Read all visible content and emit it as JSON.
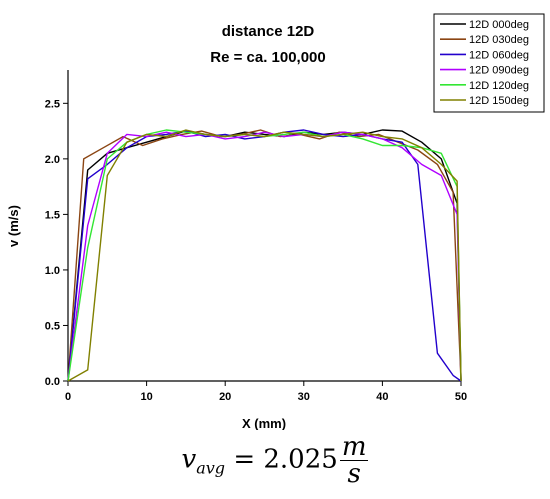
{
  "chart_data": {
    "type": "line",
    "title": [
      "distance 12D",
      "Re = ca. 100,000"
    ],
    "xlabel": "X (mm)",
    "ylabel": "v (m/s)",
    "xlim": [
      0,
      50
    ],
    "ylim": [
      0,
      2.8
    ],
    "xticks": [
      "0",
      "10",
      "20",
      "30",
      "40",
      "50"
    ],
    "yticks": [
      "0.0",
      "0.5",
      "1.0",
      "1.5",
      "2.0",
      "2.5"
    ],
    "grid": false,
    "legend_position": "top-right",
    "series": [
      {
        "name": "12D 000deg",
        "color": "#000000",
        "x": [
          0,
          2.5,
          5,
          7.5,
          10,
          12.5,
          15,
          17.5,
          20,
          22.5,
          25,
          27.5,
          30,
          32.5,
          35,
          37.5,
          40,
          42.5,
          45,
          47.5,
          49.5,
          50
        ],
        "y": [
          0,
          1.9,
          2.05,
          2.1,
          2.15,
          2.2,
          2.25,
          2.22,
          2.2,
          2.24,
          2.22,
          2.2,
          2.24,
          2.22,
          2.24,
          2.22,
          2.26,
          2.25,
          2.15,
          2.0,
          1.6,
          0
        ]
      },
      {
        "name": "12D 030deg",
        "color": "#8B4513",
        "x": [
          0,
          2,
          4.5,
          7,
          9.5,
          12,
          14.5,
          17,
          19.5,
          22,
          24.5,
          27,
          29.5,
          32,
          34.5,
          37,
          39.5,
          42,
          44.5,
          47,
          49,
          50
        ],
        "y": [
          0,
          2.0,
          2.1,
          2.2,
          2.12,
          2.18,
          2.22,
          2.25,
          2.2,
          2.22,
          2.26,
          2.2,
          2.22,
          2.18,
          2.24,
          2.2,
          2.22,
          2.15,
          2.08,
          1.95,
          1.7,
          0
        ]
      },
      {
        "name": "12D 060deg",
        "color": "#2200CC",
        "x": [
          0,
          2.5,
          5,
          7.5,
          10,
          12.5,
          15,
          17.5,
          20,
          22.5,
          25,
          27.5,
          30,
          32.5,
          35,
          37.5,
          40,
          42.5,
          44.5,
          47,
          49,
          50
        ],
        "y": [
          0,
          1.82,
          1.95,
          2.1,
          2.2,
          2.22,
          2.25,
          2.2,
          2.22,
          2.18,
          2.2,
          2.24,
          2.26,
          2.22,
          2.2,
          2.22,
          2.18,
          2.15,
          1.95,
          0.25,
          0.05,
          0
        ]
      },
      {
        "name": "12D 090deg",
        "color": "#B000FF",
        "x": [
          0,
          2.5,
          5,
          7.5,
          10,
          12.5,
          15,
          17.5,
          20,
          22.5,
          25,
          27.5,
          30,
          32.5,
          35,
          37.5,
          40,
          42.5,
          45,
          47.5,
          49.5,
          50
        ],
        "y": [
          0,
          1.4,
          2.05,
          2.22,
          2.2,
          2.24,
          2.2,
          2.22,
          2.18,
          2.2,
          2.24,
          2.2,
          2.22,
          2.2,
          2.24,
          2.22,
          2.18,
          2.1,
          1.95,
          1.85,
          1.5,
          0
        ]
      },
      {
        "name": "12D 120deg",
        "color": "#33E633",
        "x": [
          0,
          2.5,
          5,
          7.5,
          10,
          12.5,
          15,
          17.5,
          20,
          22.5,
          25,
          27.5,
          30,
          32.5,
          35,
          37.5,
          40,
          42.5,
          45,
          47.5,
          49.5,
          50
        ],
        "y": [
          0,
          1.2,
          2.0,
          2.15,
          2.22,
          2.26,
          2.24,
          2.22,
          2.2,
          2.22,
          2.2,
          2.22,
          2.24,
          2.2,
          2.22,
          2.18,
          2.12,
          2.12,
          2.1,
          2.05,
          1.75,
          0
        ]
      },
      {
        "name": "12D 150deg",
        "color": "#808000",
        "x": [
          0,
          2.5,
          5,
          7.5,
          10,
          12.5,
          15,
          17.5,
          20,
          22.5,
          25,
          27.5,
          30,
          32.5,
          35,
          37.5,
          40,
          42.5,
          45,
          47.5,
          49.5,
          50
        ],
        "y": [
          0,
          0.1,
          1.85,
          2.15,
          2.22,
          2.2,
          2.26,
          2.22,
          2.2,
          2.22,
          2.2,
          2.24,
          2.22,
          2.2,
          2.22,
          2.24,
          2.2,
          2.18,
          2.1,
          1.95,
          1.8,
          0
        ]
      }
    ]
  },
  "formula": {
    "var": "v",
    "sub": "avg",
    "eq": "=",
    "value": "2.025",
    "unit_num": "m",
    "unit_den": "s"
  }
}
